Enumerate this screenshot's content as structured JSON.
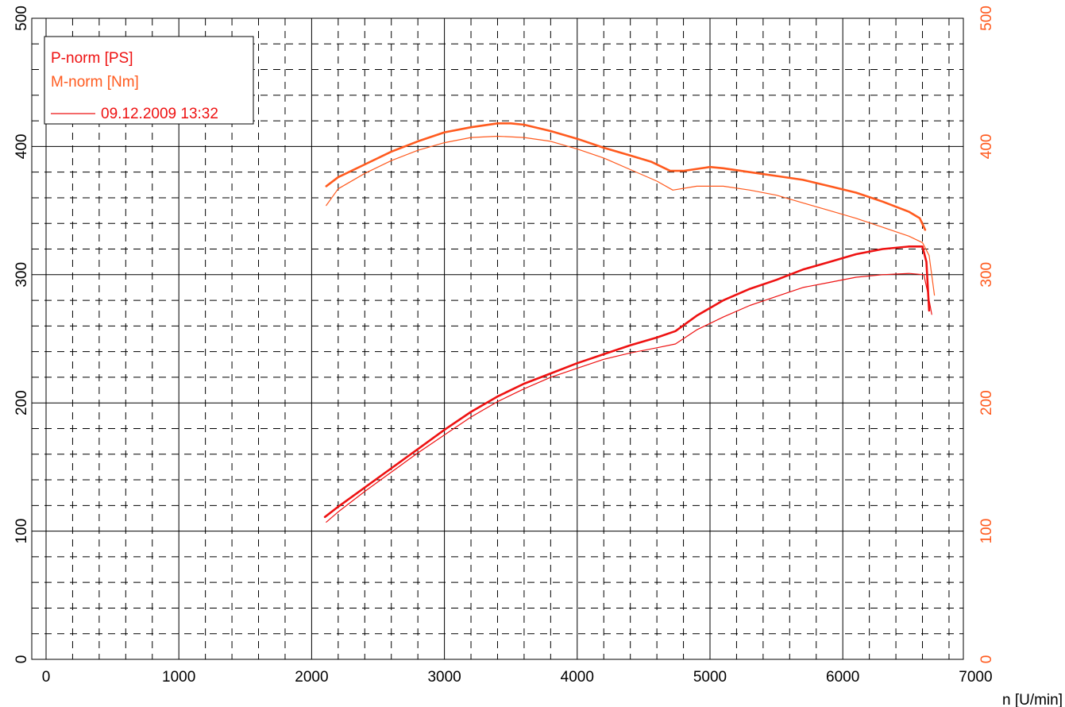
{
  "chart_data": {
    "type": "line",
    "xlabel": "n [U/min]",
    "xlim": [
      0,
      7000
    ],
    "x_ticks": [
      0,
      1000,
      2000,
      3000,
      4000,
      5000,
      6000,
      7000
    ],
    "ylim_left": [
      0,
      500
    ],
    "ylim_right": [
      0,
      500
    ],
    "y_ticks": [
      0,
      100,
      200,
      300,
      400,
      500
    ],
    "grid": true,
    "legend_position": "top-left",
    "legend": {
      "lines": [
        "P-norm [PS]",
        "M-norm [Nm]"
      ],
      "run_label": "09.12.2009 13:32"
    },
    "colors": {
      "power": "#ee1111",
      "torque": "#ff5a1e",
      "left_axis": "#000000",
      "right_axis": "#ff5a1e"
    },
    "series": [
      {
        "name": "M-norm [Nm]",
        "quantity": "torque",
        "style": "bold",
        "x": [
          2110,
          2200,
          2400,
          2600,
          2800,
          3000,
          3200,
          3400,
          3500,
          3600,
          3800,
          4000,
          4200,
          4400,
          4560,
          4700,
          4800,
          5000,
          5100,
          5300,
          5500,
          5700,
          5900,
          6100,
          6300,
          6500,
          6580,
          6620
        ],
        "y": [
          369,
          376,
          386,
          396,
          404,
          411,
          415,
          418,
          418,
          417,
          412,
          406,
          399,
          393,
          388,
          381,
          381,
          384,
          383,
          380,
          377,
          374,
          369,
          364,
          357,
          349,
          344,
          335
        ]
      },
      {
        "name": "P-norm [PS]",
        "quantity": "power",
        "style": "bold",
        "x": [
          2100,
          2200,
          2400,
          2600,
          2800,
          3000,
          3200,
          3400,
          3600,
          3800,
          4000,
          4200,
          4400,
          4600,
          4740,
          4900,
          5100,
          5300,
          5500,
          5700,
          5900,
          6100,
          6300,
          6500,
          6600,
          6630,
          6650
        ],
        "y": [
          111,
          119,
          134,
          149,
          164,
          179,
          193,
          205,
          215,
          223,
          231,
          238,
          245,
          251,
          256,
          268,
          280,
          289,
          296,
          304,
          310,
          316,
          320,
          322,
          322,
          310,
          272
        ]
      },
      {
        "name": "M-norm [Nm]",
        "quantity": "torque",
        "style": "thin",
        "x": [
          2110,
          2200,
          2400,
          2600,
          2800,
          3000,
          3200,
          3400,
          3600,
          3800,
          4000,
          4200,
          4400,
          4600,
          4720,
          4900,
          5100,
          5300,
          5500,
          5700,
          5900,
          6100,
          6300,
          6500,
          6600,
          6650,
          6690
        ],
        "y": [
          354,
          367,
          379,
          389,
          397,
          403,
          407,
          408,
          407,
          404,
          398,
          391,
          382,
          373,
          366,
          369,
          369,
          366,
          362,
          356,
          350,
          344,
          337,
          330,
          325,
          315,
          284
        ]
      },
      {
        "name": "P-norm [PS]",
        "quantity": "power",
        "style": "thin",
        "x": [
          2110,
          2200,
          2400,
          2600,
          2800,
          3000,
          3200,
          3400,
          3600,
          3800,
          4000,
          4200,
          4400,
          4600,
          4740,
          4900,
          5100,
          5300,
          5500,
          5700,
          5900,
          6100,
          6300,
          6500,
          6610,
          6640,
          6670
        ],
        "y": [
          107,
          115,
          131,
          146,
          161,
          175,
          189,
          201,
          211,
          220,
          227,
          234,
          239,
          243,
          246,
          257,
          267,
          276,
          283,
          290,
          294,
          298,
          300,
          301,
          300,
          286,
          269
        ]
      }
    ]
  }
}
